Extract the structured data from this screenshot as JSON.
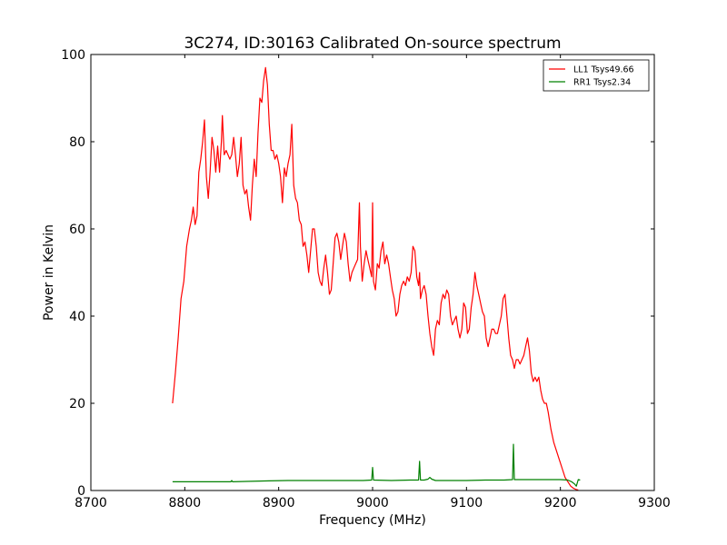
{
  "chart_data": {
    "type": "line",
    "title": "3C274, ID:30163 Calibrated On-source spectrum",
    "xlabel": "Frequency (MHz)",
    "ylabel": "Power in Kelvin",
    "xlim": [
      8700,
      9300
    ],
    "ylim": [
      0,
      100
    ],
    "xticks": [
      "8700",
      "8800",
      "8900",
      "9000",
      "9100",
      "9200",
      "9300"
    ],
    "yticks": [
      "0",
      "20",
      "40",
      "60",
      "80",
      "100"
    ],
    "grid": false,
    "legend_position": "top-right",
    "series": [
      {
        "name": "LL1 Tsys49.66",
        "color": "#ff0000",
        "points": [
          [
            8787,
            20
          ],
          [
            8790,
            27
          ],
          [
            8793,
            35
          ],
          [
            8796,
            44
          ],
          [
            8799,
            48
          ],
          [
            8802,
            56
          ],
          [
            8805,
            60
          ],
          [
            8807,
            62
          ],
          [
            8809,
            65
          ],
          [
            8811,
            61
          ],
          [
            8813,
            63
          ],
          [
            8815,
            73
          ],
          [
            8817,
            76
          ],
          [
            8819,
            80
          ],
          [
            8821,
            85
          ],
          [
            8823,
            72
          ],
          [
            8825,
            67
          ],
          [
            8827,
            73
          ],
          [
            8829,
            81
          ],
          [
            8831,
            78
          ],
          [
            8833,
            73
          ],
          [
            8835,
            79
          ],
          [
            8837,
            73
          ],
          [
            8839,
            80
          ],
          [
            8840,
            86
          ],
          [
            8842,
            77
          ],
          [
            8844,
            78
          ],
          [
            8846,
            77
          ],
          [
            8848,
            76
          ],
          [
            8850,
            77
          ],
          [
            8852,
            81
          ],
          [
            8854,
            77
          ],
          [
            8856,
            72
          ],
          [
            8858,
            75
          ],
          [
            8860,
            81
          ],
          [
            8862,
            70
          ],
          [
            8864,
            68
          ],
          [
            8866,
            69
          ],
          [
            8868,
            65
          ],
          [
            8870,
            62
          ],
          [
            8872,
            70
          ],
          [
            8874,
            76
          ],
          [
            8876,
            72
          ],
          [
            8878,
            82
          ],
          [
            8880,
            90
          ],
          [
            8882,
            89
          ],
          [
            8884,
            94
          ],
          [
            8886,
            97
          ],
          [
            8888,
            93
          ],
          [
            8890,
            84
          ],
          [
            8892,
            78
          ],
          [
            8894,
            78
          ],
          [
            8896,
            76
          ],
          [
            8898,
            77
          ],
          [
            8900,
            75
          ],
          [
            8902,
            72
          ],
          [
            8904,
            66
          ],
          [
            8906,
            74
          ],
          [
            8908,
            72
          ],
          [
            8910,
            75
          ],
          [
            8912,
            77
          ],
          [
            8914,
            84
          ],
          [
            8916,
            70
          ],
          [
            8918,
            67
          ],
          [
            8920,
            66
          ],
          [
            8922,
            62
          ],
          [
            8924,
            61
          ],
          [
            8926,
            56
          ],
          [
            8928,
            57
          ],
          [
            8930,
            54
          ],
          [
            8932,
            50
          ],
          [
            8934,
            55
          ],
          [
            8936,
            60
          ],
          [
            8938,
            60
          ],
          [
            8940,
            56
          ],
          [
            8942,
            50
          ],
          [
            8944,
            48
          ],
          [
            8946,
            47
          ],
          [
            8948,
            51
          ],
          [
            8950,
            54
          ],
          [
            8952,
            50
          ],
          [
            8954,
            45
          ],
          [
            8956,
            46
          ],
          [
            8958,
            52
          ],
          [
            8960,
            58
          ],
          [
            8962,
            59
          ],
          [
            8964,
            57
          ],
          [
            8966,
            53
          ],
          [
            8968,
            56
          ],
          [
            8970,
            59
          ],
          [
            8972,
            57
          ],
          [
            8974,
            52
          ],
          [
            8976,
            48
          ],
          [
            8978,
            50
          ],
          [
            8980,
            51
          ],
          [
            8982,
            52
          ],
          [
            8984,
            53
          ],
          [
            8986,
            66
          ],
          [
            8987,
            56
          ],
          [
            8989,
            48
          ],
          [
            8991,
            52
          ],
          [
            8993,
            55
          ],
          [
            8995,
            53
          ],
          [
            8997,
            51
          ],
          [
            8999,
            49
          ],
          [
            9000,
            66
          ],
          [
            9001,
            48
          ],
          [
            9003,
            46
          ],
          [
            9005,
            52
          ],
          [
            9007,
            51
          ],
          [
            9009,
            55
          ],
          [
            9011,
            57
          ],
          [
            9013,
            52
          ],
          [
            9015,
            54
          ],
          [
            9017,
            52
          ],
          [
            9019,
            49
          ],
          [
            9021,
            46
          ],
          [
            9023,
            44
          ],
          [
            9025,
            40
          ],
          [
            9027,
            41
          ],
          [
            9029,
            45
          ],
          [
            9031,
            47
          ],
          [
            9033,
            48
          ],
          [
            9035,
            47
          ],
          [
            9037,
            49
          ],
          [
            9039,
            48
          ],
          [
            9041,
            50
          ],
          [
            9043,
            56
          ],
          [
            9045,
            55
          ],
          [
            9047,
            49
          ],
          [
            9049,
            47
          ],
          [
            9050,
            50
          ],
          [
            9051,
            44
          ],
          [
            9053,
            46
          ],
          [
            9055,
            47
          ],
          [
            9057,
            45
          ],
          [
            9059,
            40
          ],
          [
            9061,
            36
          ],
          [
            9063,
            33
          ],
          [
            9065,
            31
          ],
          [
            9067,
            37
          ],
          [
            9069,
            39
          ],
          [
            9071,
            38
          ],
          [
            9073,
            43
          ],
          [
            9075,
            45
          ],
          [
            9077,
            44
          ],
          [
            9079,
            46
          ],
          [
            9081,
            45
          ],
          [
            9083,
            40
          ],
          [
            9085,
            38
          ],
          [
            9087,
            39
          ],
          [
            9089,
            40
          ],
          [
            9091,
            37
          ],
          [
            9093,
            35
          ],
          [
            9095,
            37
          ],
          [
            9097,
            43
          ],
          [
            9099,
            42
          ],
          [
            9101,
            36
          ],
          [
            9103,
            37
          ],
          [
            9105,
            42
          ],
          [
            9107,
            45
          ],
          [
            9109,
            50
          ],
          [
            9111,
            47
          ],
          [
            9113,
            45
          ],
          [
            9115,
            43
          ],
          [
            9117,
            41
          ],
          [
            9119,
            40
          ],
          [
            9121,
            35
          ],
          [
            9123,
            33
          ],
          [
            9125,
            35
          ],
          [
            9127,
            37
          ],
          [
            9129,
            37
          ],
          [
            9131,
            36
          ],
          [
            9133,
            36
          ],
          [
            9135,
            38
          ],
          [
            9137,
            40
          ],
          [
            9139,
            44
          ],
          [
            9141,
            45
          ],
          [
            9143,
            40
          ],
          [
            9145,
            35
          ],
          [
            9147,
            31
          ],
          [
            9149,
            30
          ],
          [
            9151,
            28
          ],
          [
            9153,
            30
          ],
          [
            9155,
            30
          ],
          [
            9157,
            29
          ],
          [
            9159,
            30
          ],
          [
            9161,
            31
          ],
          [
            9163,
            33
          ],
          [
            9165,
            35
          ],
          [
            9167,
            32
          ],
          [
            9169,
            27
          ],
          [
            9171,
            25
          ],
          [
            9173,
            26
          ],
          [
            9175,
            25
          ],
          [
            9177,
            26
          ],
          [
            9179,
            23
          ],
          [
            9181,
            21
          ],
          [
            9183,
            20
          ],
          [
            9185,
            20
          ],
          [
            9187,
            18
          ],
          [
            9190,
            14
          ],
          [
            9193,
            11
          ],
          [
            9196,
            9
          ],
          [
            9199,
            7
          ],
          [
            9202,
            5
          ],
          [
            9205,
            3
          ],
          [
            9208,
            2
          ],
          [
            9211,
            1
          ],
          [
            9214,
            0.5
          ],
          [
            9217,
            0.2
          ],
          [
            9219,
            0.1
          ]
        ]
      },
      {
        "name": "RR1 Tsys2.34",
        "color": "#008000",
        "points": [
          [
            8787,
            2.0
          ],
          [
            8800,
            2.0
          ],
          [
            8820,
            2.0
          ],
          [
            8840,
            2.0
          ],
          [
            8849,
            2.0
          ],
          [
            8850,
            2.3
          ],
          [
            8851,
            2.0
          ],
          [
            8870,
            2.1
          ],
          [
            8890,
            2.2
          ],
          [
            8910,
            2.3
          ],
          [
            8930,
            2.3
          ],
          [
            8950,
            2.3
          ],
          [
            8970,
            2.3
          ],
          [
            8990,
            2.3
          ],
          [
            8999,
            2.4
          ],
          [
            9000,
            5.3
          ],
          [
            9001,
            2.4
          ],
          [
            9020,
            2.3
          ],
          [
            9040,
            2.4
          ],
          [
            9049,
            2.4
          ],
          [
            9050,
            6.7
          ],
          [
            9051,
            2.4
          ],
          [
            9055,
            2.4
          ],
          [
            9059,
            2.6
          ],
          [
            9061,
            3.0
          ],
          [
            9063,
            2.6
          ],
          [
            9067,
            2.3
          ],
          [
            9080,
            2.3
          ],
          [
            9100,
            2.3
          ],
          [
            9120,
            2.4
          ],
          [
            9140,
            2.4
          ],
          [
            9149,
            2.5
          ],
          [
            9150,
            10.6
          ],
          [
            9151,
            2.5
          ],
          [
            9170,
            2.5
          ],
          [
            9190,
            2.5
          ],
          [
            9200,
            2.5
          ],
          [
            9208,
            2.4
          ],
          [
            9212,
            2.0
          ],
          [
            9215,
            1.5
          ],
          [
            9217,
            1.0
          ],
          [
            9219,
            2.5
          ],
          [
            9221,
            2.4
          ]
        ]
      }
    ]
  }
}
